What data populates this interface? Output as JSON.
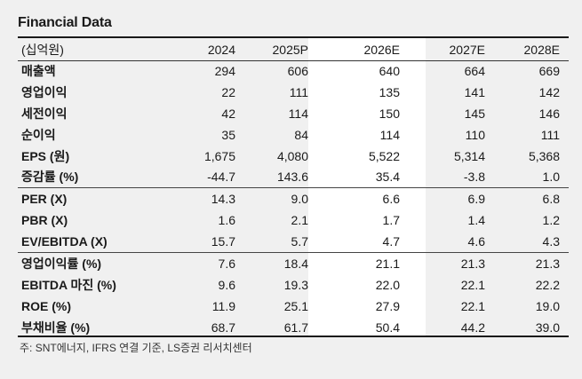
{
  "title": "Financial Data",
  "header": [
    "(십억원)",
    "2024",
    "2025P",
    "2026E",
    "2027E",
    "2028E"
  ],
  "groups": [
    [
      {
        "label": "매출액",
        "values": [
          "294",
          "606",
          "640",
          "664",
          "669"
        ]
      },
      {
        "label": "영업이익",
        "values": [
          "22",
          "111",
          "135",
          "141",
          "142"
        ]
      },
      {
        "label": "세전이익",
        "values": [
          "42",
          "114",
          "150",
          "145",
          "146"
        ]
      },
      {
        "label": "순이익",
        "values": [
          "35",
          "84",
          "114",
          "110",
          "111"
        ]
      },
      {
        "label": "EPS (원)",
        "values": [
          "1,675",
          "4,080",
          "5,522",
          "5,314",
          "5,368"
        ]
      },
      {
        "label": "증감률 (%)",
        "values": [
          "-44.7",
          "143.6",
          "35.4",
          "-3.8",
          "1.0"
        ]
      }
    ],
    [
      {
        "label": "PER (X)",
        "values": [
          "14.3",
          "9.0",
          "6.6",
          "6.9",
          "6.8"
        ]
      },
      {
        "label": "PBR (X)",
        "values": [
          "1.6",
          "2.1",
          "1.7",
          "1.4",
          "1.2"
        ]
      },
      {
        "label": "EV/EBITDA (X)",
        "values": [
          "15.7",
          "5.7",
          "4.7",
          "4.6",
          "4.3"
        ]
      }
    ],
    [
      {
        "label": "영업이익률 (%)",
        "values": [
          "7.6",
          "18.4",
          "21.1",
          "21.3",
          "21.3"
        ]
      },
      {
        "label": "EBITDA 마진 (%)",
        "values": [
          "9.6",
          "19.3",
          "22.0",
          "22.1",
          "22.2"
        ]
      },
      {
        "label": "ROE (%)",
        "values": [
          "11.9",
          "25.1",
          "27.9",
          "22.1",
          "19.0"
        ]
      },
      {
        "label": "부채비율 (%)",
        "values": [
          "68.7",
          "61.7",
          "50.4",
          "44.2",
          "39.0"
        ]
      }
    ]
  ],
  "footnote": "주: SNT에너지, IFRS 연결 기준, LS증권 리서치센터"
}
